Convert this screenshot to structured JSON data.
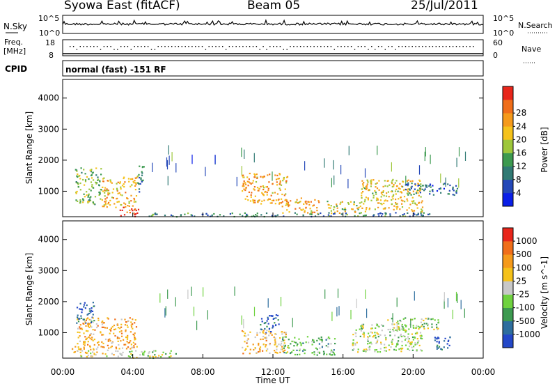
{
  "header": {
    "title": "Syowa East (fitACF)",
    "beam": "Beam 05",
    "date": "25/Jul/2011"
  },
  "top_panels": {
    "nsky_label": "N.Sky",
    "nsearch_label": "N.Search",
    "noise_ticks": [
      "10^5",
      "10^0"
    ],
    "freq_label_line1": "Freq.",
    "freq_label_line2": "[MHz]",
    "freq_ticks": [
      "18",
      "8"
    ],
    "nave_label": "Nave",
    "nave_ticks": [
      "60",
      "0"
    ],
    "cpid_label": "CPID",
    "cpid_text": "normal (fast) -151 RF"
  },
  "chart_data": [
    {
      "type": "heatmap",
      "name": "power",
      "ylabel": "Slant Range [km]",
      "y_ticks": [
        1000,
        2000,
        3000,
        4000
      ],
      "ylim": [
        180,
        4600
      ],
      "xlim": [
        0,
        24
      ],
      "colorbar": {
        "label": "Power [dB]",
        "ticks": [
          "4",
          "8",
          "12",
          "16",
          "20",
          "24",
          "28"
        ],
        "colors": [
          "#0a1fe8",
          "#2448b8",
          "#317a74",
          "#3d9a50",
          "#9ec73b",
          "#f5c21b",
          "#f59a1b",
          "#f06e1a",
          "#e8261b"
        ]
      },
      "regions": [
        {
          "t0": 0.7,
          "t1": 2.2,
          "r0": 600,
          "r1": 1800,
          "level": 0.45
        },
        {
          "t0": 2.2,
          "t1": 4.2,
          "r0": 500,
          "r1": 1500,
          "level": 0.65
        },
        {
          "t0": 3.2,
          "t1": 4.4,
          "r0": 200,
          "r1": 500,
          "level": 0.9
        },
        {
          "t0": 4.2,
          "t1": 4.6,
          "r0": 1000,
          "r1": 2000,
          "level": 0.3
        },
        {
          "t0": 4.6,
          "t1": 6.5,
          "r0": 200,
          "r1": 320,
          "level": 0.35
        },
        {
          "t0": 10.2,
          "t1": 12.8,
          "r0": 600,
          "r1": 1600,
          "level": 0.7
        },
        {
          "t0": 12.5,
          "t1": 14.6,
          "r0": 300,
          "r1": 800,
          "level": 0.7
        },
        {
          "t0": 15.0,
          "t1": 17.0,
          "r0": 300,
          "r1": 700,
          "level": 0.55
        },
        {
          "t0": 17.0,
          "t1": 20.5,
          "r0": 350,
          "r1": 1400,
          "level": 0.6
        },
        {
          "t0": 19.5,
          "t1": 22.5,
          "r0": 900,
          "r1": 1300,
          "level": 0.25
        },
        {
          "t0": 6.0,
          "t1": 21.0,
          "r0": 200,
          "r1": 330,
          "level": 0.3
        }
      ]
    },
    {
      "type": "heatmap",
      "name": "velocity",
      "ylabel": "Slant Range [km]",
      "y_ticks": [
        1000,
        2000,
        3000,
        4000
      ],
      "ylim": [
        180,
        4600
      ],
      "xlim": [
        0,
        24
      ],
      "colorbar": {
        "label": "Velocity [m s^-1]",
        "ticks": [
          "1000",
          "500",
          "100",
          "25",
          "-25",
          "-100",
          "-500",
          "-1000"
        ],
        "colors": [
          "#2448c8",
          "#2e6e9e",
          "#3d9a50",
          "#6fd23f",
          "#c8c8c8",
          "#f5c21b",
          "#f59a1b",
          "#f06e1a",
          "#e8261b"
        ]
      },
      "regions": [
        {
          "t0": 0.7,
          "t1": 1.8,
          "r0": 1300,
          "r1": 2000,
          "level": 0.1
        },
        {
          "t0": 0.8,
          "t1": 4.2,
          "r0": 500,
          "r1": 1500,
          "level": 0.7
        },
        {
          "t0": 0.5,
          "t1": 3.0,
          "r0": 250,
          "r1": 600,
          "level": 0.6
        },
        {
          "t0": 3.0,
          "t1": 6.5,
          "r0": 200,
          "r1": 450,
          "level": 0.45
        },
        {
          "t0": 11.2,
          "t1": 12.3,
          "r0": 1000,
          "r1": 1600,
          "level": 0.1
        },
        {
          "t0": 10.2,
          "t1": 12.8,
          "r0": 350,
          "r1": 1100,
          "level": 0.62
        },
        {
          "t0": 12.5,
          "t1": 15.5,
          "r0": 300,
          "r1": 900,
          "level": 0.35
        },
        {
          "t0": 16.5,
          "t1": 20.5,
          "r0": 400,
          "r1": 1300,
          "level": 0.45
        },
        {
          "t0": 18.5,
          "t1": 21.5,
          "r0": 1100,
          "r1": 1500,
          "level": 0.45
        },
        {
          "t0": 21.2,
          "t1": 22.2,
          "r0": 400,
          "r1": 900,
          "level": 0.15
        }
      ]
    }
  ],
  "x_axis": {
    "ticks": [
      "00:00",
      "04:00",
      "08:00",
      "12:00",
      "16:00",
      "20:00",
      "00:00"
    ],
    "label": "Time UT"
  }
}
